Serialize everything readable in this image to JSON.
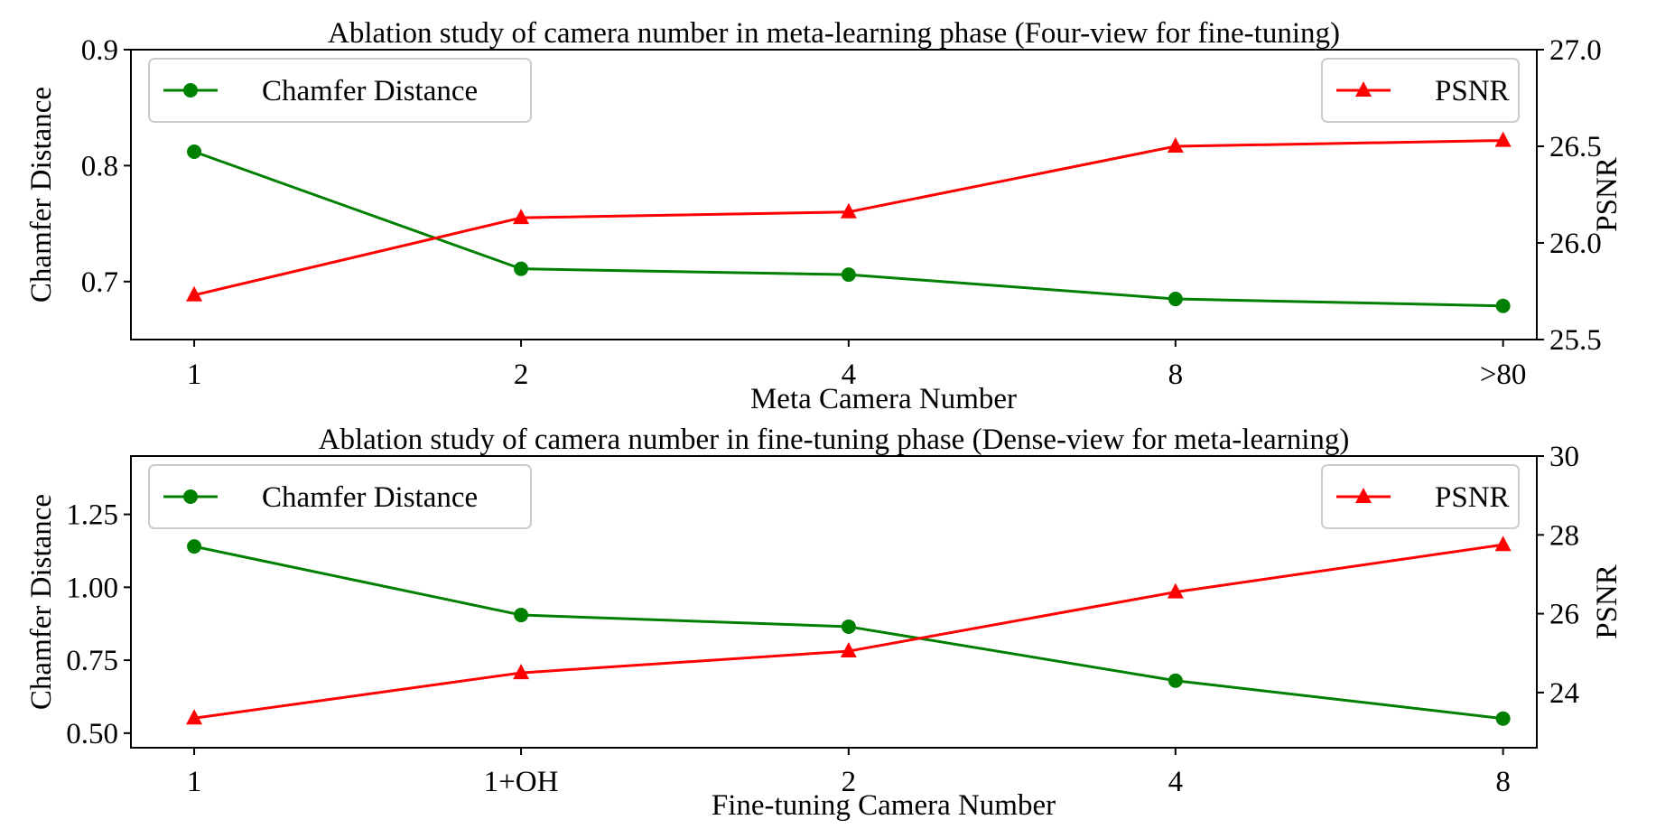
{
  "chart_data": [
    {
      "type": "line",
      "title": "Ablation study of camera number in meta-learning phase (Four-view for fine-tuning)",
      "xlabel": "Meta Camera Number",
      "ylabel": "Chamfer Distance",
      "y2label": "PSNR",
      "categories": [
        "1",
        "2",
        "4",
        "8",
        ">80"
      ],
      "ylim": [
        0.65,
        0.9
      ],
      "yticks": [
        0.7,
        0.8,
        0.9
      ],
      "ytick_labels": [
        "0.7",
        "0.8",
        "0.9"
      ],
      "y2lim": [
        25.5,
        27.0
      ],
      "y2ticks": [
        25.5,
        26.0,
        26.5,
        27.0
      ],
      "y2tick_labels": [
        "25.5",
        "26.0",
        "26.5",
        "27.0"
      ],
      "grid": false,
      "series": [
        {
          "name": "Chamfer Distance",
          "axis": "left",
          "color": "#008000",
          "marker": "circle",
          "legend": "top-left",
          "values": [
            0.812,
            0.711,
            0.706,
            0.685,
            0.679
          ]
        },
        {
          "name": "PSNR",
          "axis": "right",
          "color": "#ff0000",
          "marker": "triangle",
          "legend": "top-right",
          "values": [
            25.73,
            26.13,
            26.16,
            26.5,
            26.53
          ]
        }
      ]
    },
    {
      "type": "line",
      "title": "Ablation study of camera number in fine-tuning phase (Dense-view for meta-learning)",
      "xlabel": "Fine-tuning Camera Number",
      "ylabel": "Chamfer Distance",
      "y2label": "PSNR",
      "categories": [
        "1",
        "1+OH",
        "2",
        "4",
        "8"
      ],
      "ylim": [
        0.45,
        1.45
      ],
      "yticks": [
        0.5,
        0.75,
        1.0,
        1.25
      ],
      "ytick_labels": [
        "0.50",
        "0.75",
        "1.00",
        "1.25"
      ],
      "y2lim": [
        22.6,
        30.0
      ],
      "y2ticks": [
        24,
        26,
        28,
        30
      ],
      "y2tick_labels": [
        "24",
        "26",
        "28",
        "30"
      ],
      "grid": false,
      "series": [
        {
          "name": "Chamfer Distance",
          "axis": "left",
          "color": "#008000",
          "marker": "circle",
          "legend": "top-left",
          "values": [
            1.14,
            0.905,
            0.865,
            0.68,
            0.55
          ]
        },
        {
          "name": "PSNR",
          "axis": "right",
          "color": "#ff0000",
          "marker": "triangle",
          "legend": "top-right",
          "values": [
            23.35,
            24.5,
            25.05,
            26.55,
            27.75
          ]
        }
      ]
    }
  ]
}
